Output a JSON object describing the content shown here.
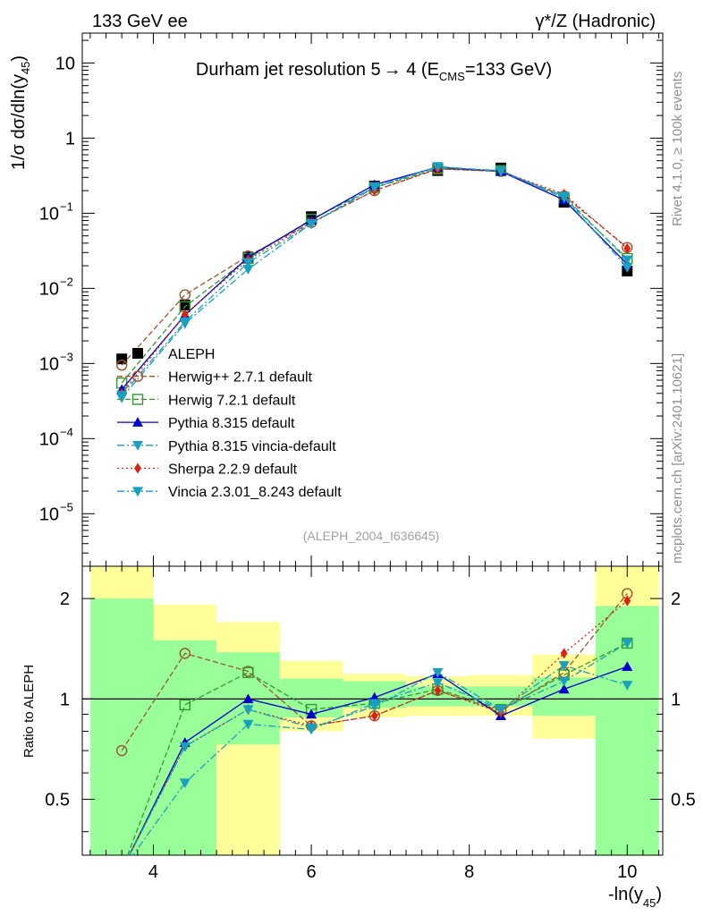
{
  "header": {
    "left": "133 GeV ee",
    "right": "γ*/Z (Hadronic)"
  },
  "side_labels": {
    "rivet": "Rivet 4.1.0, ≥ 100k events",
    "mcplots": "mcplots.cern.ch [arXiv:2401.10621]"
  },
  "analysis_id": "(ALEPH_2004_I636645)",
  "chart_data": [
    {
      "type": "line",
      "panel": "main",
      "title": "Durham jet resolution 5→ 4 (E_CMS=133 GeV)",
      "title_parts": {
        "pre": "Durham jet resolution 5",
        "arrow": "→",
        "mid": " 4 (E",
        "sub": "CMS",
        "post": "=133 GeV)"
      },
      "ylabel": "1/σ dσ/dln(y45)",
      "ylabel_parts": {
        "pre": "1/σ  dσ/dln(y",
        "sub": "45",
        "post": ")"
      },
      "yscale": "log",
      "ylim": [
        2e-06,
        25
      ],
      "xlim": [
        3.1,
        10.45
      ],
      "y_ticks": [
        {
          "value": 10,
          "mant": "10",
          "exp": ""
        },
        {
          "value": 1,
          "mant": "1",
          "exp": ""
        },
        {
          "value": 0.1,
          "mant": "10",
          "exp": "−1"
        },
        {
          "value": 0.01,
          "mant": "10",
          "exp": "−2"
        },
        {
          "value": 0.001,
          "mant": "10",
          "exp": "−3"
        },
        {
          "value": 0.0001,
          "mant": "10",
          "exp": "−4"
        },
        {
          "value": 1e-05,
          "mant": "10",
          "exp": "−5"
        }
      ],
      "x": [
        3.6,
        4.4,
        5.2,
        6.0,
        6.8,
        7.6,
        8.4,
        9.2,
        10.0
      ],
      "series": [
        {
          "name": "ALEPH",
          "color": "#000000",
          "marker": "square",
          "dash": "none",
          "values": [
            0.00115,
            0.006,
            0.026,
            0.09,
            0.23,
            0.37,
            0.4,
            0.14,
            0.017
          ]
        },
        {
          "name": "Herwig++ 2.7.1 default",
          "color": "#a0522d",
          "marker": "circle-open",
          "dash": "6,3",
          "values": [
            0.00095,
            0.0082,
            0.027,
            0.075,
            0.2,
            0.39,
            0.36,
            0.17,
            0.035
          ]
        },
        {
          "name": "Herwig 7.2.1 default",
          "color": "#339933",
          "marker": "square-open",
          "dash": "6,3",
          "values": [
            0.00055,
            0.0057,
            0.025,
            0.083,
            0.22,
            0.39,
            0.37,
            0.16,
            0.025
          ]
        },
        {
          "name": "Pythia 8.315 default",
          "color": "#0000cc",
          "marker": "triangle-up",
          "dash": "none",
          "values": [
            0.00045,
            0.0044,
            0.026,
            0.081,
            0.24,
            0.41,
            0.36,
            0.15,
            0.021
          ]
        },
        {
          "name": "Pythia 8.315 vincia-default",
          "color": "#1a9fc0",
          "marker": "triangle-down",
          "dash": "8,3,2,3",
          "values": [
            0.00035,
            0.0034,
            0.018,
            0.073,
            0.225,
            0.41,
            0.37,
            0.16,
            0.019
          ]
        },
        {
          "name": "Sherpa 2.2.9 default",
          "color": "#e02010",
          "marker": "diamond",
          "dash": "2,3",
          "values": [
            0.0004,
            0.0045,
            0.024,
            0.075,
            0.2,
            0.39,
            0.36,
            0.18,
            0.034
          ]
        },
        {
          "name": "Vincia 2.3.01_8.243 default",
          "color": "#1a9fc0",
          "marker": "triangle-down",
          "dash": "8,3,2,3",
          "values": [
            0.00038,
            0.0036,
            0.022,
            0.072,
            0.22,
            0.42,
            0.36,
            0.17,
            0.024
          ]
        }
      ],
      "legend_position": "center-left"
    },
    {
      "type": "line",
      "panel": "ratio",
      "ylabel": "Ratio to ALEPH",
      "xlabel": "-ln(y45)",
      "xlabel_parts": {
        "pre": "-ln(y",
        "sub": "45",
        "post": ")"
      },
      "yscale": "log",
      "ylim": [
        0.34,
        2.5
      ],
      "xlim": [
        3.1,
        10.45
      ],
      "y_ticks": [
        {
          "value": 2,
          "label": "2"
        },
        {
          "value": 1,
          "label": "1"
        },
        {
          "value": 0.5,
          "label": "0.5"
        }
      ],
      "x_ticks": [
        {
          "value": 4,
          "label": "4"
        },
        {
          "value": 6,
          "label": "6"
        },
        {
          "value": 8,
          "label": "8"
        },
        {
          "value": 10,
          "label": "10"
        }
      ],
      "reference_line": 1,
      "bins": [
        {
          "lo": 3.2,
          "hi": 4.0,
          "stat": [
            0.3,
            2.0
          ],
          "tot": [
            0.3,
            2.6
          ]
        },
        {
          "lo": 4.0,
          "hi": 4.8,
          "stat": [
            0.3,
            1.5
          ],
          "tot": [
            0.57,
            1.92
          ]
        },
        {
          "lo": 4.8,
          "hi": 5.6,
          "stat": [
            0.73,
            1.38
          ],
          "tot": [
            0.3,
            1.7
          ]
        },
        {
          "lo": 5.6,
          "hi": 6.4,
          "stat": [
            0.88,
            1.15
          ],
          "tot": [
            0.8,
            1.3
          ]
        },
        {
          "lo": 6.4,
          "hi": 7.2,
          "stat": [
            0.94,
            1.13
          ],
          "tot": [
            0.88,
            1.19
          ]
        },
        {
          "lo": 7.2,
          "hi": 8.0,
          "stat": [
            0.95,
            1.09
          ],
          "tot": [
            0.89,
            1.17
          ]
        },
        {
          "lo": 8.0,
          "hi": 8.8,
          "stat": [
            0.95,
            1.09
          ],
          "tot": [
            0.89,
            1.18
          ]
        },
        {
          "lo": 8.8,
          "hi": 9.6,
          "stat": [
            0.89,
            1.16
          ],
          "tot": [
            0.76,
            1.36
          ]
        },
        {
          "lo": 9.6,
          "hi": 10.4,
          "stat": [
            0.3,
            1.9
          ],
          "tot": [
            0.3,
            2.6
          ]
        }
      ],
      "x": [
        3.6,
        4.4,
        5.2,
        6.0,
        6.8,
        7.6,
        8.4,
        9.2,
        10.0
      ],
      "series": [
        {
          "name": "Herwig++ 2.7.1 default",
          "color": "#a0522d",
          "marker": "circle-open",
          "dash": "6,3",
          "values": [
            0.7,
            1.37,
            1.21,
            0.83,
            0.89,
            1.06,
            0.92,
            1.2,
            2.07
          ]
        },
        {
          "name": "Herwig 7.2.1 default",
          "color": "#339933",
          "marker": "square-open",
          "dash": "6,3",
          "values": [
            0.3,
            0.96,
            1.2,
            0.93,
            0.97,
            1.07,
            0.93,
            1.18,
            1.47
          ]
        },
        {
          "name": "Pythia 8.315 default",
          "color": "#0000cc",
          "marker": "triangle-up",
          "dash": "none",
          "values": [
            0.3,
            0.74,
            1.0,
            0.9,
            1.01,
            1.19,
            0.89,
            1.07,
            1.25
          ]
        },
        {
          "name": "Pythia 8.315 vincia-default",
          "color": "#1a9fc0",
          "marker": "triangle-down",
          "dash": "8,3,2,3",
          "values": [
            0.3,
            0.56,
            0.84,
            0.81,
            0.97,
            1.12,
            0.93,
            1.26,
            1.1
          ]
        },
        {
          "name": "Sherpa 2.2.9 default",
          "color": "#e02010",
          "marker": "diamond",
          "dash": "2,3",
          "values": [
            0.3,
            0.72,
            0.93,
            0.83,
            0.89,
            1.06,
            0.91,
            1.37,
            1.97
          ]
        },
        {
          "name": "Vincia 2.3.01_8.243 default",
          "color": "#1a9fc0",
          "marker": "triangle-down",
          "dash": "8,3,2,3",
          "values": [
            0.3,
            0.72,
            0.93,
            0.82,
            0.95,
            1.2,
            0.93,
            1.13,
            1.47
          ]
        }
      ]
    }
  ]
}
